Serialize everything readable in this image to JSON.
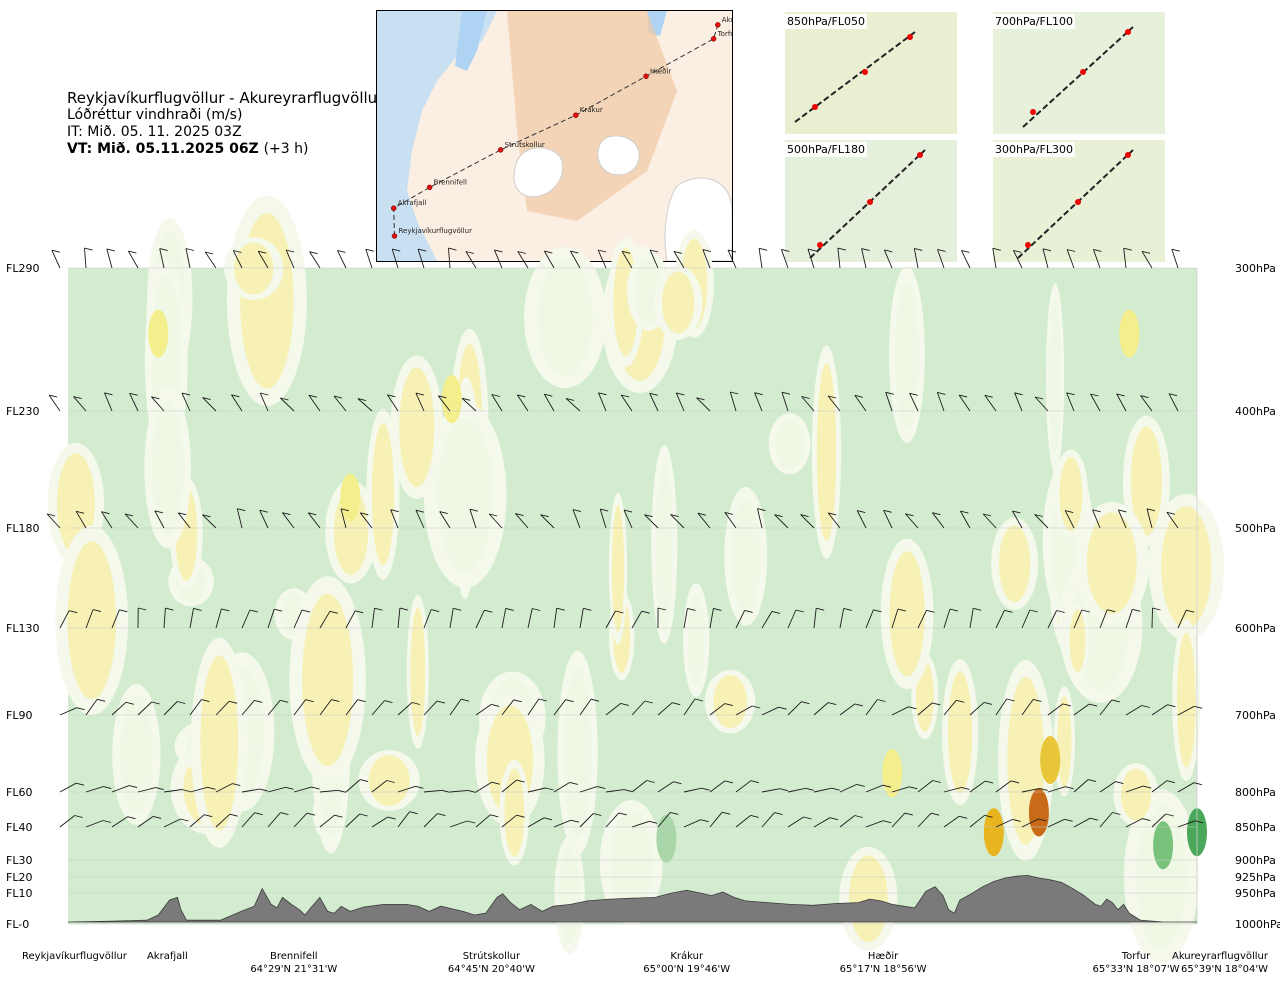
{
  "header": {
    "title": "Reykjavíkurflugvöllur - Akureyrarflugvöllur",
    "subtitle": "Lóðréttur vindhraði (m/s)",
    "issue_time": "IT: Mið. 05. 11. 2025 03Z",
    "valid_time": "VT: Mið. 05.11.2025 06Z",
    "valid_offset": "(+3 h)"
  },
  "route_map": {
    "points": [
      {
        "name": "Reykjavíkurflugvöllur",
        "lon": -21.94,
        "lat": 64.13
      },
      {
        "name": "Akrafjall",
        "lon": -21.95,
        "lat": 64.33
      },
      {
        "name": "Brennifell",
        "lon": -21.52,
        "lat": 64.48
      },
      {
        "name": "Strútskollur",
        "lon": -20.67,
        "lat": 64.75
      },
      {
        "name": "Krákur",
        "lon": -19.77,
        "lat": 65.0
      },
      {
        "name": "Hæðir",
        "lon": -18.93,
        "lat": 65.28
      },
      {
        "name": "Torfur",
        "lon": -18.12,
        "lat": 65.55
      },
      {
        "name": "Akureyrarflugvöllur",
        "lon": -18.07,
        "lat": 65.65
      }
    ]
  },
  "insets": [
    {
      "label": "850hPa/FL050"
    },
    {
      "label": "700hPa/FL100"
    },
    {
      "label": "500hPa/FL180"
    },
    {
      "label": "300hPa/FL300"
    }
  ],
  "chart_data": {
    "type": "heatmap",
    "title": "Lóðréttur vindhraði (m/s)",
    "xlabel": "",
    "ylabel": "",
    "x_range_fraction": [
      0,
      1
    ],
    "levels": [
      {
        "fl": "FL290",
        "hpa": "300hPa"
      },
      {
        "fl": "FL230",
        "hpa": "400hPa"
      },
      {
        "fl": "FL180",
        "hpa": "500hPa"
      },
      {
        "fl": "FL130",
        "hpa": "600hPa"
      },
      {
        "fl": "FL90",
        "hpa": "700hPa"
      },
      {
        "fl": "FL60",
        "hpa": "800hPa"
      },
      {
        "fl": "FL40",
        "hpa": "850hPa"
      },
      {
        "fl": "FL30",
        "hpa": "900hPa"
      },
      {
        "fl": "FL20",
        "hpa": "925hPa"
      },
      {
        "fl": "FL10",
        "hpa": "950hPa"
      },
      {
        "fl": "FL-0",
        "hpa": "1000hPa"
      }
    ],
    "waypoints": [
      {
        "name": "Reykjavíkurflugvöllur",
        "coord": "",
        "pos": 0.0
      },
      {
        "name": "Akrafjall",
        "coord": "",
        "pos": 0.088
      },
      {
        "name": "Brennifell",
        "coord": "64°29'N 21°31'W",
        "pos": 0.2
      },
      {
        "name": "Strútskollur",
        "coord": "64°45'N 20°40'W",
        "pos": 0.375
      },
      {
        "name": "Krákur",
        "coord": "65°00'N 19°46'W",
        "pos": 0.548
      },
      {
        "name": "Hæðir",
        "coord": "65°17'N 18°56'W",
        "pos": 0.722
      },
      {
        "name": "Torfur",
        "coord": "65°33'N 18°07'W",
        "pos": 0.946
      },
      {
        "name": "Akureyrarflugvöllur",
        "coord": "65°39'N 18°04'W",
        "pos": 1.0
      }
    ],
    "terrain": [
      [
        0,
        0.0
      ],
      [
        0.04,
        0.01
      ],
      [
        0.07,
        0.02
      ],
      [
        0.08,
        0.08
      ],
      [
        0.09,
        0.25
      ],
      [
        0.097,
        0.28
      ],
      [
        0.1,
        0.14
      ],
      [
        0.105,
        0.02
      ],
      [
        0.135,
        0.02
      ],
      [
        0.155,
        0.13
      ],
      [
        0.165,
        0.18
      ],
      [
        0.172,
        0.38
      ],
      [
        0.18,
        0.2
      ],
      [
        0.185,
        0.16
      ],
      [
        0.19,
        0.28
      ],
      [
        0.198,
        0.2
      ],
      [
        0.205,
        0.14
      ],
      [
        0.21,
        0.08
      ],
      [
        0.215,
        0.16
      ],
      [
        0.223,
        0.28
      ],
      [
        0.23,
        0.12
      ],
      [
        0.236,
        0.1
      ],
      [
        0.242,
        0.18
      ],
      [
        0.25,
        0.12
      ],
      [
        0.262,
        0.17
      ],
      [
        0.28,
        0.2
      ],
      [
        0.3,
        0.2
      ],
      [
        0.31,
        0.18
      ],
      [
        0.32,
        0.12
      ],
      [
        0.33,
        0.18
      ],
      [
        0.35,
        0.12
      ],
      [
        0.36,
        0.08
      ],
      [
        0.37,
        0.1
      ],
      [
        0.38,
        0.28
      ],
      [
        0.385,
        0.32
      ],
      [
        0.392,
        0.22
      ],
      [
        0.4,
        0.14
      ],
      [
        0.41,
        0.2
      ],
      [
        0.42,
        0.12
      ],
      [
        0.43,
        0.18
      ],
      [
        0.445,
        0.2
      ],
      [
        0.46,
        0.24
      ],
      [
        0.48,
        0.26
      ],
      [
        0.5,
        0.27
      ],
      [
        0.52,
        0.28
      ],
      [
        0.535,
        0.33
      ],
      [
        0.548,
        0.36
      ],
      [
        0.56,
        0.33
      ],
      [
        0.57,
        0.3
      ],
      [
        0.58,
        0.34
      ],
      [
        0.59,
        0.28
      ],
      [
        0.6,
        0.24
      ],
      [
        0.62,
        0.22
      ],
      [
        0.64,
        0.2
      ],
      [
        0.66,
        0.19
      ],
      [
        0.68,
        0.21
      ],
      [
        0.7,
        0.22
      ],
      [
        0.71,
        0.26
      ],
      [
        0.72,
        0.24
      ],
      [
        0.73,
        0.2
      ],
      [
        0.74,
        0.18
      ],
      [
        0.75,
        0.16
      ],
      [
        0.76,
        0.35
      ],
      [
        0.768,
        0.4
      ],
      [
        0.775,
        0.3
      ],
      [
        0.78,
        0.14
      ],
      [
        0.785,
        0.1
      ],
      [
        0.79,
        0.25
      ],
      [
        0.8,
        0.32
      ],
      [
        0.81,
        0.4
      ],
      [
        0.82,
        0.46
      ],
      [
        0.83,
        0.5
      ],
      [
        0.84,
        0.52
      ],
      [
        0.85,
        0.53
      ],
      [
        0.86,
        0.5
      ],
      [
        0.87,
        0.48
      ],
      [
        0.88,
        0.45
      ],
      [
        0.89,
        0.38
      ],
      [
        0.9,
        0.3
      ],
      [
        0.91,
        0.2
      ],
      [
        0.915,
        0.18
      ],
      [
        0.92,
        0.26
      ],
      [
        0.925,
        0.22
      ],
      [
        0.93,
        0.14
      ],
      [
        0.935,
        0.2
      ],
      [
        0.94,
        0.1
      ],
      [
        0.95,
        0.02
      ],
      [
        0.97,
        0.0
      ],
      [
        1.0,
        0.0
      ]
    ],
    "grid": true,
    "legend": "none"
  }
}
